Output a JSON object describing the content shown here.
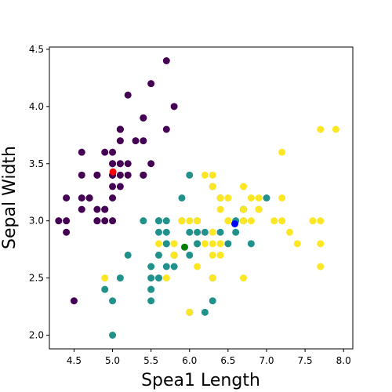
{
  "chart_data": {
    "type": "scatter",
    "title": "",
    "xlabel": "Spea1 Length",
    "ylabel": "Sepal Width",
    "xlim": [
      4.18,
      8.12
    ],
    "ylim": [
      1.88,
      4.52
    ],
    "x_ticks": [
      "4.5",
      "5.0",
      "5.5",
      "6.0",
      "6.5",
      "7.0",
      "7.5",
      "8.0"
    ],
    "y_ticks": [
      "2.0",
      "2.5",
      "3.0",
      "3.5",
      "4.0",
      "4.5"
    ],
    "grid": false,
    "legend": "none",
    "series": [
      {
        "color": "#440154",
        "points": [
          [
            5.1,
            3.5
          ],
          [
            4.9,
            3.0
          ],
          [
            4.7,
            3.2
          ],
          [
            4.6,
            3.1
          ],
          [
            5.0,
            3.6
          ],
          [
            5.4,
            3.9
          ],
          [
            4.6,
            3.4
          ],
          [
            5.0,
            3.4
          ],
          [
            4.4,
            2.9
          ],
          [
            4.9,
            3.1
          ],
          [
            5.4,
            3.7
          ],
          [
            4.8,
            3.4
          ],
          [
            4.8,
            3.0
          ],
          [
            4.3,
            3.0
          ],
          [
            5.8,
            4.0
          ],
          [
            5.7,
            4.4
          ],
          [
            5.4,
            3.9
          ],
          [
            5.1,
            3.5
          ],
          [
            5.7,
            3.8
          ],
          [
            5.1,
            3.8
          ],
          [
            5.4,
            3.4
          ],
          [
            5.1,
            3.7
          ],
          [
            4.6,
            3.6
          ],
          [
            5.1,
            3.3
          ],
          [
            4.8,
            3.4
          ],
          [
            5.0,
            3.0
          ],
          [
            5.0,
            3.4
          ],
          [
            5.2,
            3.5
          ],
          [
            5.2,
            3.4
          ],
          [
            4.7,
            3.2
          ],
          [
            4.8,
            3.1
          ],
          [
            5.4,
            3.4
          ],
          [
            5.2,
            4.1
          ],
          [
            5.5,
            4.2
          ],
          [
            4.9,
            3.1
          ],
          [
            5.0,
            3.2
          ],
          [
            5.5,
            3.5
          ],
          [
            4.9,
            3.6
          ],
          [
            4.4,
            3.0
          ],
          [
            5.1,
            3.4
          ],
          [
            5.0,
            3.5
          ],
          [
            4.5,
            2.3
          ],
          [
            4.4,
            3.2
          ],
          [
            5.0,
            3.5
          ],
          [
            5.1,
            3.8
          ],
          [
            4.8,
            3.0
          ],
          [
            5.1,
            3.8
          ],
          [
            4.6,
            3.2
          ],
          [
            5.3,
            3.7
          ],
          [
            5.0,
            3.3
          ]
        ]
      },
      {
        "color": "#21918c",
        "points": [
          [
            7.0,
            3.2
          ],
          [
            6.4,
            3.2
          ],
          [
            6.9,
            3.1
          ],
          [
            5.5,
            2.3
          ],
          [
            6.5,
            2.8
          ],
          [
            5.7,
            2.8
          ],
          [
            6.3,
            3.3
          ],
          [
            4.9,
            2.4
          ],
          [
            6.6,
            2.9
          ],
          [
            5.2,
            2.7
          ],
          [
            5.0,
            2.0
          ],
          [
            5.9,
            3.0
          ],
          [
            6.0,
            2.2
          ],
          [
            6.1,
            2.9
          ],
          [
            5.6,
            2.9
          ],
          [
            6.7,
            3.1
          ],
          [
            5.6,
            3.0
          ],
          [
            5.8,
            2.7
          ],
          [
            6.2,
            2.2
          ],
          [
            5.6,
            2.5
          ],
          [
            5.9,
            3.2
          ],
          [
            6.1,
            2.8
          ],
          [
            6.3,
            2.5
          ],
          [
            6.1,
            2.8
          ],
          [
            6.4,
            2.9
          ],
          [
            6.6,
            3.0
          ],
          [
            6.8,
            2.8
          ],
          [
            6.7,
            3.0
          ],
          [
            6.0,
            2.9
          ],
          [
            5.7,
            2.6
          ],
          [
            5.5,
            2.4
          ],
          [
            5.5,
            2.4
          ],
          [
            5.8,
            2.7
          ],
          [
            6.0,
            2.7
          ],
          [
            5.4,
            3.0
          ],
          [
            6.0,
            3.4
          ],
          [
            6.7,
            3.1
          ],
          [
            6.3,
            2.3
          ],
          [
            5.6,
            3.0
          ],
          [
            5.5,
            2.5
          ],
          [
            5.5,
            2.6
          ],
          [
            6.1,
            3.0
          ],
          [
            5.8,
            2.6
          ],
          [
            5.0,
            2.3
          ],
          [
            5.6,
            2.7
          ],
          [
            5.7,
            3.0
          ],
          [
            5.7,
            2.9
          ],
          [
            6.2,
            2.9
          ],
          [
            5.1,
            2.5
          ],
          [
            5.7,
            2.8
          ]
        ]
      },
      {
        "color": "#fde725",
        "points": [
          [
            6.3,
            3.3
          ],
          [
            5.8,
            2.7
          ],
          [
            7.1,
            3.0
          ],
          [
            6.3,
            2.9
          ],
          [
            6.5,
            3.0
          ],
          [
            7.6,
            3.0
          ],
          [
            4.9,
            2.5
          ],
          [
            7.3,
            2.9
          ],
          [
            6.7,
            2.5
          ],
          [
            7.2,
            3.6
          ],
          [
            6.5,
            3.2
          ],
          [
            6.4,
            2.7
          ],
          [
            6.8,
            3.0
          ],
          [
            5.7,
            2.5
          ],
          [
            5.8,
            2.8
          ],
          [
            6.4,
            3.2
          ],
          [
            6.5,
            3.0
          ],
          [
            7.7,
            3.8
          ],
          [
            7.7,
            2.6
          ],
          [
            6.0,
            2.2
          ],
          [
            6.9,
            3.2
          ],
          [
            5.6,
            2.8
          ],
          [
            7.7,
            2.8
          ],
          [
            6.3,
            2.7
          ],
          [
            6.7,
            3.3
          ],
          [
            7.2,
            3.2
          ],
          [
            6.2,
            2.8
          ],
          [
            6.1,
            3.0
          ],
          [
            6.4,
            2.8
          ],
          [
            7.2,
            3.0
          ],
          [
            7.4,
            2.8
          ],
          [
            7.9,
            3.8
          ],
          [
            6.4,
            2.8
          ],
          [
            6.3,
            2.8
          ],
          [
            6.1,
            2.6
          ],
          [
            7.7,
            3.0
          ],
          [
            6.3,
            3.4
          ],
          [
            6.4,
            3.1
          ],
          [
            6.0,
            3.0
          ],
          [
            6.9,
            3.1
          ],
          [
            6.7,
            3.1
          ],
          [
            6.9,
            3.1
          ],
          [
            5.8,
            2.7
          ],
          [
            6.8,
            3.2
          ],
          [
            6.7,
            3.3
          ],
          [
            6.7,
            3.0
          ],
          [
            6.3,
            2.5
          ],
          [
            6.5,
            3.0
          ],
          [
            6.2,
            3.4
          ],
          [
            5.9,
            3.0
          ]
        ]
      },
      {
        "color": "#ff0000",
        "points": [
          [
            5.006,
            3.428
          ]
        ]
      },
      {
        "color": "#008000",
        "points": [
          [
            5.936,
            2.77
          ]
        ]
      },
      {
        "color": "#0000ff",
        "points": [
          [
            6.588,
            2.974
          ]
        ]
      }
    ]
  }
}
